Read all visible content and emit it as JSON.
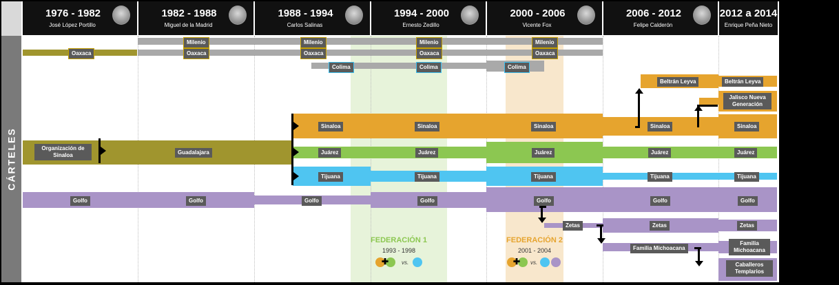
{
  "side_label": "CÁRTELES",
  "periods": [
    {
      "years": "1976 - 1982",
      "president": "José López Portillo"
    },
    {
      "years": "1982 - 1988",
      "president": "Miguel de la Madrid"
    },
    {
      "years": "1988 - 1994",
      "president": "Carlos Salinas"
    },
    {
      "years": "1994 - 2000",
      "president": "Ernesto Zedillo"
    },
    {
      "years": "2000 - 2006",
      "president": "Vicente Fox"
    },
    {
      "years": "2006 - 2012",
      "president": "Felipe Calderón"
    },
    {
      "years": "2012 a 2014",
      "president": "Enrique Peña Nieto"
    }
  ],
  "federations": [
    {
      "title": "FEDERACIÓN 1",
      "dates": "1993 - 1998",
      "vs": "vs."
    },
    {
      "title": "FEDERACIÓN 2",
      "dates": "2001 - 2004",
      "vs": "vs."
    }
  ],
  "colors": {
    "oaxaca": "#a0952e",
    "milenio": "#a9a9a9",
    "colima": "#a9a9a9",
    "guadalajara": "#a0952e",
    "sinaloa": "#e6a42e",
    "juarez": "#8cc751",
    "tijuana": "#4fc5f1",
    "golfo": "#a994c7",
    "zetas": "#a994c7",
    "familia": "#a994c7",
    "fed1": "#e6f3d9",
    "fed2": "#f9e8cc",
    "label": "#5a5a5a"
  },
  "labels": {
    "milenio": "Milenio",
    "oaxaca": "Oaxaca",
    "colima": "Colima",
    "beltran": "Beltrán Leyva",
    "jalisco": "Jalisco Nueva Generación",
    "sinaloa": "Sinaloa",
    "org_sinaloa": "Organización de Sinaloa",
    "guadalajara": "Guadalajara",
    "juarez": "Juárez",
    "tijuana": "Tijuana",
    "golfo": "Golfo",
    "zetas": "Zetas",
    "familia": "Familia Michoacana",
    "familia_short": "Familia Michoacana",
    "caballeros": "Caballeros Templarios"
  }
}
